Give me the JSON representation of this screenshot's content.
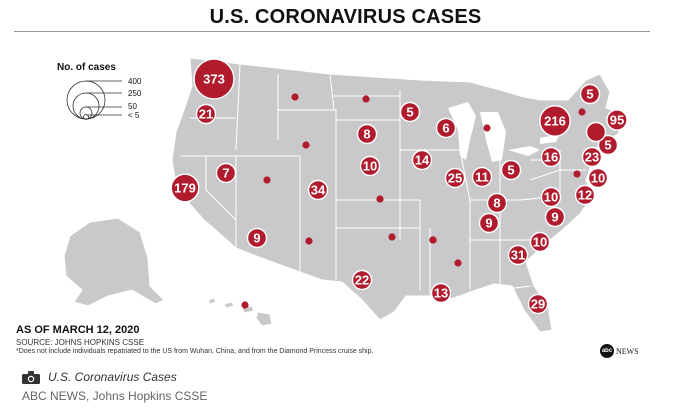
{
  "title": "U.S. CORONAVIRUS CASES",
  "legend": {
    "title": "No. of cases",
    "values": [
      "400",
      "250",
      "50",
      "< 5"
    ]
  },
  "as_of": "AS OF MARCH 12, 2020",
  "source": "SOURCE: JOHNS HOPKINS CSSE",
  "note": "*Does not include individuals repatriated to the US from Wuhan, China, and from the Diamond Princess cruise ship.",
  "logo": {
    "mark": "abc",
    "text": "NEWS"
  },
  "caption": "U.S. Coronavirus Cases",
  "credit": "ABC NEWS, Johns Hopkins CSSE",
  "colors": {
    "bubble": "#b01c2e",
    "land": "#c9c9cc",
    "border": "#ffffff",
    "text": "#111111"
  },
  "icons": {
    "caption": "camera-icon"
  },
  "cases": [
    {
      "state": "Washington",
      "value": 373,
      "label": "373"
    },
    {
      "state": "Oregon",
      "value": 21,
      "label": "21"
    },
    {
      "state": "California",
      "value": 179,
      "label": "179"
    },
    {
      "state": "Nevada",
      "value": 7,
      "label": "7"
    },
    {
      "state": "Utah",
      "value": 2,
      "label": ""
    },
    {
      "state": "Colorado",
      "value": 34,
      "label": "34"
    },
    {
      "state": "Arizona",
      "value": 9,
      "label": "9"
    },
    {
      "state": "New Mexico",
      "value": 3,
      "label": ""
    },
    {
      "state": "Texas",
      "value": 22,
      "label": "22"
    },
    {
      "state": "Montana",
      "value": 1,
      "label": ""
    },
    {
      "state": "Wyoming",
      "value": 1,
      "label": ""
    },
    {
      "state": "North Dakota",
      "value": 1,
      "label": ""
    },
    {
      "state": "South Dakota",
      "value": 8,
      "label": "8"
    },
    {
      "state": "Nebraska",
      "value": 10,
      "label": "10"
    },
    {
      "state": "Kansas",
      "value": 1,
      "label": ""
    },
    {
      "state": "Oklahoma",
      "value": 2,
      "label": ""
    },
    {
      "state": "Minnesota",
      "value": 5,
      "label": "5"
    },
    {
      "state": "Iowa",
      "value": 14,
      "label": "14"
    },
    {
      "state": "Missouri",
      "value": 1,
      "label": ""
    },
    {
      "state": "Arkansas",
      "value": 1,
      "label": ""
    },
    {
      "state": "Louisiana",
      "value": 13,
      "label": "13"
    },
    {
      "state": "Wisconsin",
      "value": 6,
      "label": "6"
    },
    {
      "state": "Illinois",
      "value": 25,
      "label": "25"
    },
    {
      "state": "Michigan",
      "value": 2,
      "label": ""
    },
    {
      "state": "Indiana",
      "value": 11,
      "label": "11"
    },
    {
      "state": "Ohio",
      "value": 5,
      "label": "5"
    },
    {
      "state": "Kentucky",
      "value": 8,
      "label": "8"
    },
    {
      "state": "Tennessee",
      "value": 9,
      "label": "9"
    },
    {
      "state": "Mississippi",
      "value": 1,
      "label": ""
    },
    {
      "state": "Georgia",
      "value": 31,
      "label": "31"
    },
    {
      "state": "Florida",
      "value": 29,
      "label": "29"
    },
    {
      "state": "South Carolina",
      "value": 10,
      "label": "10"
    },
    {
      "state": "North Carolina",
      "value": 9,
      "label": "9"
    },
    {
      "state": "Virginia",
      "value": 10,
      "label": "10"
    },
    {
      "state": "West Virginia",
      "value": 0,
      "label": ""
    },
    {
      "state": "Maryland",
      "value": 12,
      "label": "12"
    },
    {
      "state": "Delaware",
      "value": 1,
      "label": ""
    },
    {
      "state": "District of Columbia",
      "value": 10,
      "label": "10"
    },
    {
      "state": "Pennsylvania",
      "value": 16,
      "label": "16"
    },
    {
      "state": "New Jersey",
      "value": 23,
      "label": "23"
    },
    {
      "state": "New York",
      "value": 216,
      "label": "216"
    },
    {
      "state": "Connecticut",
      "value": 5,
      "label": "5"
    },
    {
      "state": "Massachusetts",
      "value": 95,
      "label": "95"
    },
    {
      "state": "New Hampshire",
      "value": 5,
      "label": "5"
    },
    {
      "state": "Vermont",
      "value": 1,
      "label": ""
    },
    {
      "state": "Rhode Island",
      "value": 5,
      "label": ""
    },
    {
      "state": "Hawaii",
      "value": 2,
      "label": ""
    }
  ]
}
